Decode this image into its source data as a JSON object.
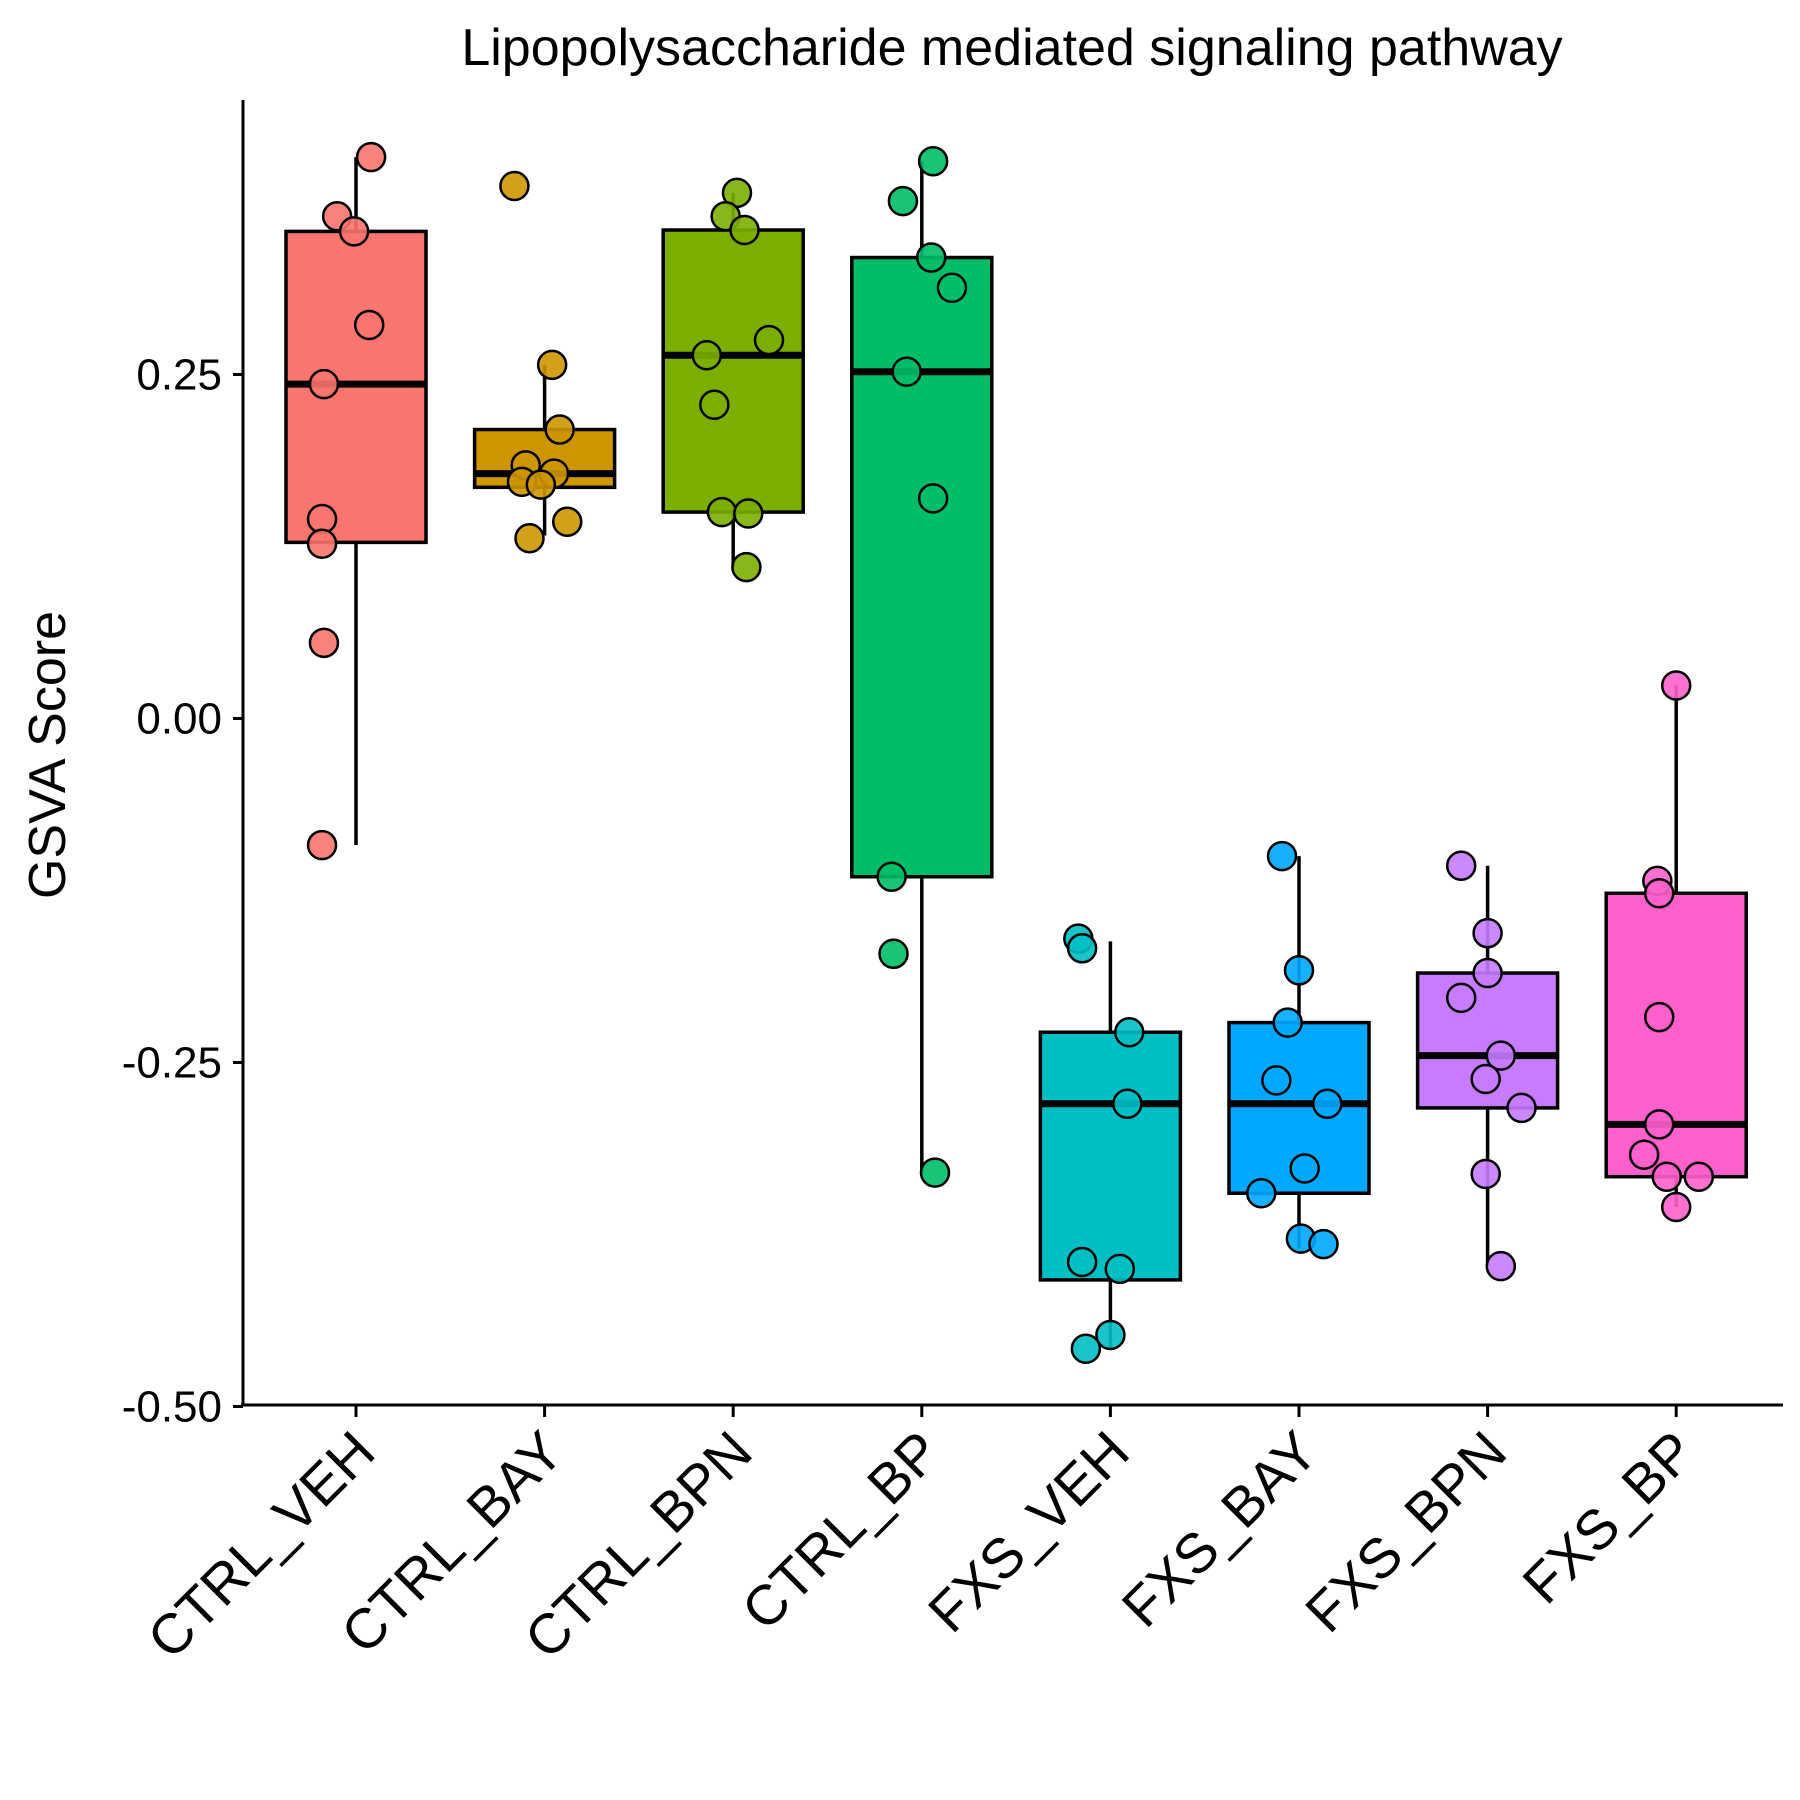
{
  "chart_data": {
    "type": "box",
    "title": "Lipopolysaccharide mediated signaling pathway",
    "xlabel": "",
    "ylabel": "GSVA Score",
    "ylim": [
      -0.5,
      0.45
    ],
    "yticks": [
      0.25,
      0.0,
      -0.25,
      -0.5
    ],
    "ytick_labels": [
      "0.25",
      "0.00",
      "-0.25",
      "-0.50"
    ],
    "grid": false,
    "legend": "none",
    "categories": [
      "CTRL_VEH",
      "CTRL_BAY",
      "CTRL_BPN",
      "CTRL_BP",
      "FXS_VEH",
      "FXS_BAY",
      "FXS_BPN",
      "FXS_BP"
    ],
    "colors": [
      "#F8766D",
      "#CD9600",
      "#7CAE00",
      "#00BE67",
      "#00BFC4",
      "#00A9FF",
      "#C77CFF",
      "#FF61CC"
    ],
    "boxes": [
      {
        "q1": 0.128,
        "median": 0.243,
        "q3": 0.354,
        "whisker_low": -0.092,
        "whisker_high": 0.408
      },
      {
        "q1": 0.168,
        "median": 0.178,
        "q3": 0.21,
        "whisker_low": 0.133,
        "whisker_high": 0.257
      },
      {
        "q1": 0.15,
        "median": 0.264,
        "q3": 0.355,
        "whisker_low": 0.11,
        "whisker_high": 0.382
      },
      {
        "q1": -0.115,
        "median": 0.252,
        "q3": 0.335,
        "whisker_low": -0.33,
        "whisker_high": 0.405
      },
      {
        "q1": -0.408,
        "median": -0.28,
        "q3": -0.228,
        "whisker_low": -0.458,
        "whisker_high": -0.162
      },
      {
        "q1": -0.345,
        "median": -0.28,
        "q3": -0.221,
        "whisker_low": -0.385,
        "whisker_high": -0.1
      },
      {
        "q1": -0.283,
        "median": -0.245,
        "q3": -0.185,
        "whisker_low": -0.398,
        "whisker_high": -0.107
      },
      {
        "q1": -0.333,
        "median": -0.295,
        "q3": -0.127,
        "whisker_low": -0.355,
        "whisker_high": 0.024
      }
    ],
    "points": [
      [
        {
          "x": 0.08,
          "y": 0.408
        },
        {
          "x": -0.1,
          "y": 0.365
        },
        {
          "x": -0.01,
          "y": 0.354
        },
        {
          "x": 0.07,
          "y": 0.286
        },
        {
          "x": -0.17,
          "y": 0.243
        },
        {
          "x": -0.18,
          "y": 0.145
        },
        {
          "x": -0.18,
          "y": 0.127
        },
        {
          "x": -0.17,
          "y": 0.055
        },
        {
          "x": -0.18,
          "y": -0.092
        }
      ],
      [
        {
          "x": -0.16,
          "y": 0.387
        },
        {
          "x": 0.04,
          "y": 0.257
        },
        {
          "x": 0.08,
          "y": 0.21
        },
        {
          "x": -0.1,
          "y": 0.184
        },
        {
          "x": 0.05,
          "y": 0.178
        },
        {
          "x": -0.12,
          "y": 0.172
        },
        {
          "x": -0.02,
          "y": 0.17
        },
        {
          "x": 0.12,
          "y": 0.143
        },
        {
          "x": -0.08,
          "y": 0.131
        }
      ],
      [
        {
          "x": 0.02,
          "y": 0.382
        },
        {
          "x": -0.04,
          "y": 0.365
        },
        {
          "x": 0.06,
          "y": 0.355
        },
        {
          "x": 0.19,
          "y": 0.275
        },
        {
          "x": -0.14,
          "y": 0.264
        },
        {
          "x": -0.1,
          "y": 0.228
        },
        {
          "x": -0.06,
          "y": 0.15
        },
        {
          "x": 0.08,
          "y": 0.149
        },
        {
          "x": 0.07,
          "y": 0.11
        }
      ],
      [
        {
          "x": 0.06,
          "y": 0.405
        },
        {
          "x": -0.1,
          "y": 0.376
        },
        {
          "x": 0.05,
          "y": 0.335
        },
        {
          "x": 0.16,
          "y": 0.313
        },
        {
          "x": -0.08,
          "y": 0.252
        },
        {
          "x": 0.06,
          "y": 0.16
        },
        {
          "x": -0.16,
          "y": -0.115
        },
        {
          "x": -0.15,
          "y": -0.171
        },
        {
          "x": 0.07,
          "y": -0.33
        }
      ],
      [
        {
          "x": -0.17,
          "y": -0.16
        },
        {
          "x": -0.15,
          "y": -0.167
        },
        {
          "x": 0.1,
          "y": -0.228
        },
        {
          "x": 0.09,
          "y": -0.28
        },
        {
          "x": -0.15,
          "y": -0.395
        },
        {
          "x": 0.05,
          "y": -0.4
        },
        {
          "x": 0.0,
          "y": -0.448
        },
        {
          "x": -0.13,
          "y": -0.458
        }
      ],
      [
        {
          "x": -0.09,
          "y": -0.1
        },
        {
          "x": 0.0,
          "y": -0.183
        },
        {
          "x": -0.06,
          "y": -0.221
        },
        {
          "x": -0.12,
          "y": -0.263
        },
        {
          "x": 0.15,
          "y": -0.28
        },
        {
          "x": 0.03,
          "y": -0.327
        },
        {
          "x": -0.2,
          "y": -0.345
        },
        {
          "x": 0.01,
          "y": -0.378
        },
        {
          "x": 0.13,
          "y": -0.382
        }
      ],
      [
        {
          "x": -0.14,
          "y": -0.107
        },
        {
          "x": 0.0,
          "y": -0.156
        },
        {
          "x": 0.0,
          "y": -0.185
        },
        {
          "x": -0.14,
          "y": -0.203
        },
        {
          "x": 0.07,
          "y": -0.245
        },
        {
          "x": -0.01,
          "y": -0.262
        },
        {
          "x": 0.18,
          "y": -0.283
        },
        {
          "x": -0.01,
          "y": -0.331
        },
        {
          "x": 0.07,
          "y": -0.398
        }
      ],
      [
        {
          "x": -0.1,
          "y": -0.118
        },
        {
          "x": -0.09,
          "y": -0.127
        },
        {
          "x": -0.09,
          "y": -0.217
        },
        {
          "x": -0.09,
          "y": -0.295
        },
        {
          "x": -0.17,
          "y": -0.317
        },
        {
          "x": -0.05,
          "y": -0.333
        },
        {
          "x": 0.12,
          "y": -0.333
        },
        {
          "x": 0.0,
          "y": -0.355
        },
        {
          "x": 0.0,
          "y": 0.024
        }
      ]
    ]
  }
}
